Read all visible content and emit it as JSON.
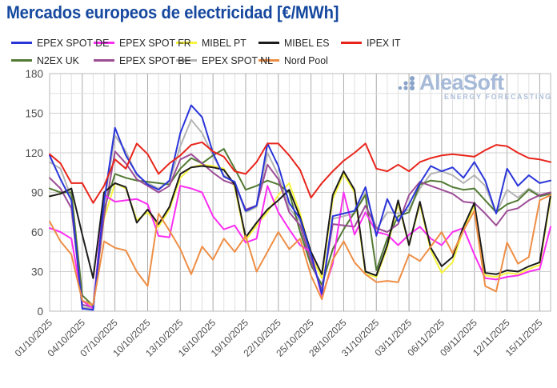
{
  "title": "Mercados europeos de electricidad [€/MWh]",
  "watermark": {
    "brand": "AleaSoft",
    "tagline": "ENERGY FORECASTING"
  },
  "chart_data": {
    "type": "line",
    "title": "Mercados europeos de electricidad [€/MWh]",
    "xlabel": "",
    "ylabel": "€/MWh",
    "ylim": [
      0,
      180
    ],
    "y_major_step": 30,
    "y_minor_step": 15,
    "y_ticks": [
      0,
      30,
      60,
      90,
      120,
      150,
      180
    ],
    "grid": true,
    "legend_position": "top",
    "x_label_every": 3,
    "dates": [
      "01/10/2025",
      "02/10/2025",
      "03/10/2025",
      "04/10/2025",
      "05/10/2025",
      "06/10/2025",
      "07/10/2025",
      "08/10/2025",
      "09/10/2025",
      "10/10/2025",
      "11/10/2025",
      "12/10/2025",
      "13/10/2025",
      "14/10/2025",
      "15/10/2025",
      "16/10/2025",
      "17/10/2025",
      "18/10/2025",
      "19/10/2025",
      "20/10/2025",
      "21/10/2025",
      "22/10/2025",
      "23/10/2025",
      "24/10/2025",
      "25/10/2025",
      "26/10/2025",
      "27/10/2025",
      "28/10/2025",
      "29/10/2025",
      "30/10/2025",
      "31/10/2025",
      "01/11/2025",
      "02/11/2025",
      "03/11/2025",
      "04/11/2025",
      "05/11/2025",
      "06/11/2025",
      "07/11/2025",
      "08/11/2025",
      "09/11/2025",
      "10/11/2025",
      "11/11/2025",
      "12/11/2025",
      "13/11/2025",
      "14/11/2025",
      "15/11/2025",
      "16/11/2025"
    ],
    "series": [
      {
        "name": "EPEX SPOT DE",
        "color": "#2a35d8",
        "values": [
          118,
          100,
          84,
          2,
          1,
          83,
          139,
          118,
          104,
          96,
          92,
          99,
          135,
          156,
          147,
          120,
          102,
          98,
          76,
          80,
          127,
          110,
          82,
          70,
          43,
          13,
          72,
          74,
          76,
          94,
          57,
          85,
          68,
          81,
          97,
          110,
          106,
          109,
          101,
          113,
          99,
          74,
          108,
          95,
          103,
          97,
          99
        ]
      },
      {
        "name": "EPEX SPOT FR",
        "color": "#fb2ef2",
        "values": [
          63,
          60,
          55,
          8,
          2,
          88,
          83,
          84,
          85,
          81,
          57,
          56,
          95,
          93,
          90,
          72,
          62,
          65,
          52,
          55,
          95,
          75,
          62,
          50,
          45,
          11,
          36,
          90,
          58,
          75,
          60,
          58,
          50,
          58,
          64,
          55,
          50,
          60,
          63,
          43,
          25,
          24,
          26,
          27,
          30,
          32,
          64
        ]
      },
      {
        "name": "MIBEL PT",
        "color": "#f7f53c",
        "values": [
          87,
          89,
          93,
          8,
          4,
          70,
          97,
          93,
          69,
          75,
          64,
          77,
          101,
          109,
          111,
          110,
          108,
          94,
          54,
          65,
          75,
          88,
          97,
          74,
          42,
          25,
          85,
          104,
          90,
          28,
          26,
          48,
          82,
          50,
          81,
          46,
          29,
          37,
          62,
          80,
          27,
          26,
          29,
          28,
          32,
          35,
          86
        ]
      },
      {
        "name": "MIBEL ES",
        "color": "#1c1c1c",
        "values": [
          87,
          89,
          93,
          58,
          25,
          90,
          97,
          94,
          67,
          77,
          66,
          79,
          104,
          109,
          110,
          109,
          107,
          96,
          56,
          67,
          77,
          84,
          92,
          71,
          45,
          28,
          88,
          106,
          92,
          30,
          27,
          50,
          84,
          50,
          83,
          48,
          34,
          41,
          64,
          82,
          29,
          28,
          31,
          30,
          34,
          37,
          88
        ]
      },
      {
        "name": "IPEX IT",
        "color": "#e8251b",
        "values": [
          119,
          112,
          97,
          97,
          82,
          95,
          115,
          108,
          127,
          119,
          104,
          112,
          118,
          126,
          128,
          121,
          117,
          106,
          104,
          113,
          127,
          127,
          118,
          107,
          86,
          97,
          106,
          114,
          120,
          127,
          108,
          106,
          111,
          106,
          113,
          116,
          118,
          119,
          118,
          117,
          122,
          126,
          125,
          120,
          116,
          115,
          113
        ]
      },
      {
        "name": "N2EX UK",
        "color": "#527a33",
        "values": [
          93,
          90,
          90,
          12,
          4,
          77,
          104,
          101,
          99,
          98,
          97,
          96,
          108,
          116,
          112,
          118,
          123,
          108,
          92,
          95,
          99,
          96,
          90,
          60,
          35,
          20,
          47,
          62,
          75,
          88,
          31,
          55,
          72,
          75,
          96,
          99,
          98,
          94,
          92,
          93,
          84,
          75,
          81,
          84,
          92,
          87,
          89
        ]
      },
      {
        "name": "EPEX SPOT BE",
        "color": "#9c4d96",
        "values": [
          101,
          93,
          78,
          5,
          3,
          72,
          121,
          112,
          100,
          95,
          90,
          95,
          115,
          119,
          112,
          105,
          99,
          96,
          77,
          80,
          111,
          100,
          75,
          65,
          38,
          16,
          66,
          65,
          64,
          80,
          63,
          60,
          66,
          88,
          98,
          95,
          92,
          89,
          83,
          82,
          74,
          65,
          76,
          78,
          84,
          88,
          90
        ]
      },
      {
        "name": "EPEX SPOT NL",
        "color": "#b4b4b4",
        "values": [
          113,
          108,
          86,
          3,
          2,
          81,
          133,
          121,
          103,
          97,
          93,
          98,
          125,
          145,
          135,
          118,
          103,
          97,
          75,
          79,
          120,
          103,
          78,
          68,
          40,
          15,
          70,
          72,
          74,
          90,
          62,
          75,
          74,
          77,
          93,
          104,
          106,
          103,
          97,
          103,
          95,
          74,
          92,
          86,
          93,
          88,
          90
        ]
      },
      {
        "name": "Nord Pool",
        "color": "#ee8e45",
        "values": [
          68,
          53,
          43,
          8,
          5,
          53,
          48,
          46,
          30,
          19,
          74,
          61,
          47,
          28,
          49,
          39,
          55,
          45,
          57,
          30,
          45,
          60,
          47,
          55,
          27,
          9,
          39,
          53,
          37,
          28,
          22,
          23,
          22,
          43,
          38,
          49,
          60,
          44,
          61,
          76,
          19,
          15,
          52,
          36,
          41,
          84,
          88
        ]
      }
    ]
  }
}
